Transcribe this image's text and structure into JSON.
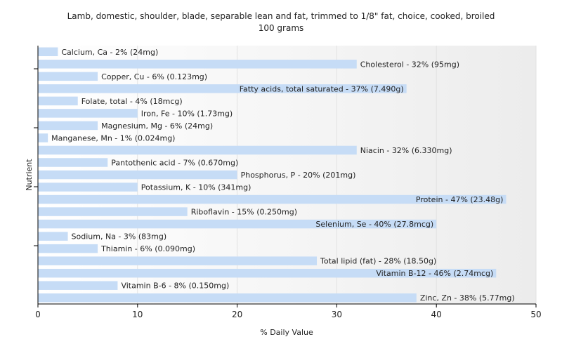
{
  "chart_data": {
    "type": "bar",
    "orientation": "horizontal",
    "title": "Lamb, domestic, shoulder, blade, separable lean and fat, trimmed to 1/8\" fat, choice, cooked, broiled",
    "subtitle": "100 grams",
    "xlabel": "% Daily Value",
    "ylabel": "Nutrient",
    "xlim": [
      0,
      50
    ],
    "xticks": [
      0,
      10,
      20,
      30,
      40,
      50
    ],
    "grid": true,
    "bar_color": "#c6dcf6",
    "categories": [
      "Calcium, Ca",
      "Cholesterol",
      "Copper, Cu",
      "Fatty acids, total saturated",
      "Folate, total",
      "Iron, Fe",
      "Magnesium, Mg",
      "Manganese, Mn",
      "Niacin",
      "Pantothenic acid",
      "Phosphorus, P",
      "Potassium, K",
      "Protein",
      "Riboflavin",
      "Selenium, Se",
      "Sodium, Na",
      "Thiamin",
      "Total lipid (fat)",
      "Vitamin B-12",
      "Vitamin B-6",
      "Zinc, Zn"
    ],
    "values": [
      2,
      32,
      6,
      37,
      4,
      10,
      6,
      1,
      32,
      7,
      20,
      10,
      47,
      15,
      40,
      3,
      6,
      28,
      46,
      8,
      38
    ],
    "bar_labels": [
      "Calcium, Ca - 2% (24mg)",
      "Cholesterol - 32% (95mg)",
      "Copper, Cu - 6% (0.123mg)",
      "Fatty acids, total saturated - 37% (7.490g)",
      "Folate, total - 4% (18mcg)",
      "Iron, Fe - 10% (1.73mg)",
      "Magnesium, Mg - 6% (24mg)",
      "Manganese, Mn - 1% (0.024mg)",
      "Niacin - 32% (6.330mg)",
      "Pantothenic acid - 7% (0.670mg)",
      "Phosphorus, P - 20% (201mg)",
      "Potassium, K - 10% (341mg)",
      "Protein - 47% (23.48g)",
      "Riboflavin - 15% (0.250mg)",
      "Selenium, Se - 40% (27.8mcg)",
      "Sodium, Na - 3% (83mg)",
      "Thiamin - 6% (0.090mg)",
      "Total lipid (fat) - 28% (18.50g)",
      "Vitamin B-12 - 46% (2.74mcg)",
      "Vitamin B-6 - 8% (0.150mg)",
      "Zinc, Zn - 38% (5.77mg)"
    ]
  }
}
